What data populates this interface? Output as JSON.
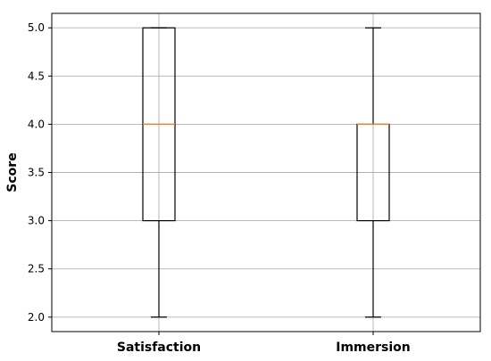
{
  "chart_data": {
    "type": "box",
    "title": "",
    "xlabel": "",
    "ylabel": "Score",
    "ylim": [
      1.85,
      5.15
    ],
    "yticks": [
      "2.0",
      "2.5",
      "3.0",
      "3.5",
      "4.0",
      "4.5",
      "5.0"
    ],
    "grid": true,
    "categories": [
      "Satisfaction",
      "Immersion"
    ],
    "boxes": [
      {
        "category": "Satisfaction",
        "whisker_low": 2.0,
        "q1": 3.0,
        "median": 4.0,
        "q3": 5.0,
        "whisker_high": 5.0
      },
      {
        "category": "Immersion",
        "whisker_low": 2.0,
        "q1": 3.0,
        "median": 4.0,
        "q3": 4.0,
        "whisker_high": 5.0
      }
    ],
    "colors": {
      "box": "#000000",
      "median": "#ff7f0e",
      "grid": "#b0b0b0"
    }
  }
}
